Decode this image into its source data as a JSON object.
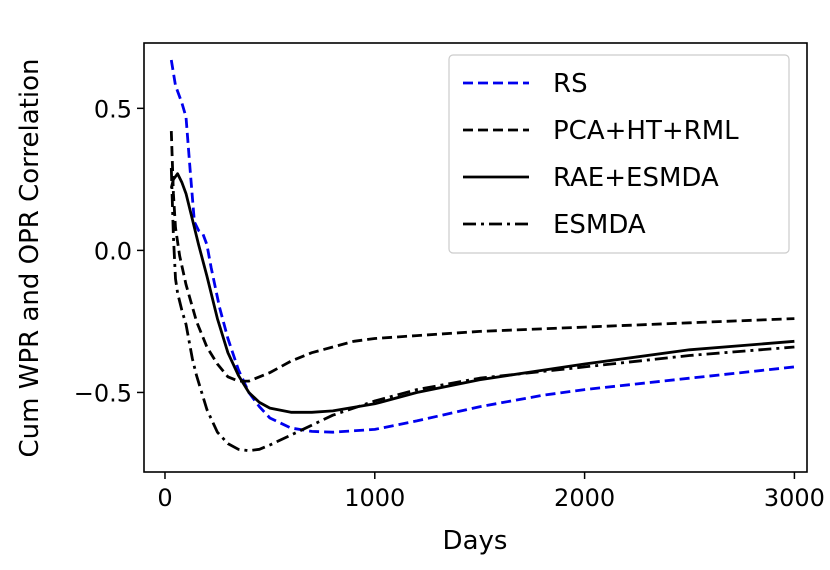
{
  "chart_data": {
    "type": "line",
    "title": "",
    "xlabel": "Days",
    "ylabel": "Cum WPR and OPR Correlation",
    "xlim": [
      -100,
      3060
    ],
    "ylim": [
      -0.78,
      0.73
    ],
    "xticks": [
      0,
      1000,
      2000,
      3000
    ],
    "xtick_labels": [
      "0",
      "1000",
      "2000",
      "3000"
    ],
    "yticks": [
      0.5,
      0.0,
      -0.5
    ],
    "ytick_labels": [
      "0.5",
      "0.0",
      "−0.5"
    ],
    "grid": false,
    "legend_position": "top-right",
    "series": [
      {
        "name": "RS",
        "color": "#0000ee",
        "dash": "dashed",
        "x": [
          30,
          50,
          80,
          100,
          120,
          140,
          160,
          180,
          200,
          220,
          260,
          300,
          350,
          400,
          450,
          500,
          600,
          700,
          800,
          900,
          1000,
          1200,
          1500,
          1800,
          2000,
          2500,
          3000
        ],
        "y": [
          0.67,
          0.58,
          0.52,
          0.47,
          0.28,
          0.1,
          0.07,
          0.06,
          0.02,
          -0.06,
          -0.2,
          -0.31,
          -0.42,
          -0.5,
          -0.55,
          -0.59,
          -0.625,
          -0.637,
          -0.64,
          -0.635,
          -0.63,
          -0.6,
          -0.55,
          -0.51,
          -0.49,
          -0.45,
          -0.41
        ]
      },
      {
        "name": "PCA+HT+RML",
        "color": "#000000",
        "dash": "dashed",
        "x": [
          30,
          40,
          50,
          70,
          100,
          150,
          200,
          250,
          300,
          350,
          400,
          500,
          600,
          700,
          800,
          900,
          1000,
          1200,
          1500,
          2000,
          2500,
          3000
        ],
        "y": [
          0.42,
          0.2,
          0.08,
          -0.02,
          -0.12,
          -0.25,
          -0.34,
          -0.4,
          -0.445,
          -0.46,
          -0.46,
          -0.43,
          -0.39,
          -0.36,
          -0.34,
          -0.32,
          -0.31,
          -0.3,
          -0.285,
          -0.27,
          -0.255,
          -0.24
        ]
      },
      {
        "name": "RAE+ESMDA",
        "color": "#000000",
        "dash": "solid",
        "x": [
          30,
          40,
          60,
          80,
          100,
          130,
          160,
          200,
          250,
          300,
          350,
          400,
          450,
          500,
          600,
          700,
          800,
          1000,
          1200,
          1500,
          2000,
          2500,
          3000
        ],
        "y": [
          0.22,
          0.25,
          0.27,
          0.24,
          0.2,
          0.11,
          0.02,
          -0.09,
          -0.24,
          -0.36,
          -0.44,
          -0.5,
          -0.535,
          -0.555,
          -0.57,
          -0.57,
          -0.565,
          -0.54,
          -0.5,
          -0.455,
          -0.4,
          -0.35,
          -0.32
        ]
      },
      {
        "name": "ESMDA",
        "color": "#000000",
        "dash": "dashdot",
        "x": [
          30,
          40,
          50,
          60,
          80,
          100,
          130,
          150,
          200,
          250,
          300,
          350,
          400,
          450,
          500,
          600,
          800,
          1000,
          1200,
          1500,
          2000,
          2500,
          3000
        ],
        "y": [
          0.29,
          0.05,
          -0.1,
          -0.15,
          -0.21,
          -0.26,
          -0.38,
          -0.44,
          -0.56,
          -0.64,
          -0.68,
          -0.7,
          -0.705,
          -0.7,
          -0.685,
          -0.65,
          -0.58,
          -0.53,
          -0.49,
          -0.45,
          -0.41,
          -0.37,
          -0.34
        ]
      }
    ]
  }
}
